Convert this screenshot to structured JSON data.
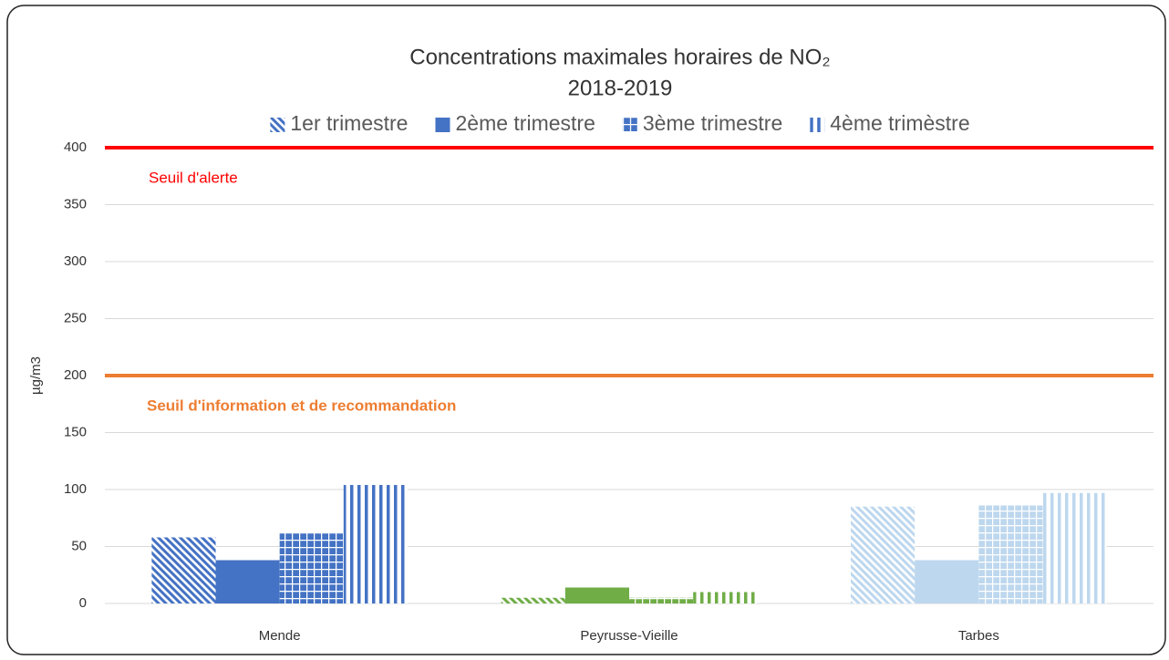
{
  "chart_data": {
    "type": "bar",
    "title": "Concentrations maximales horaires de NO₂",
    "subtitle": "2018-2019",
    "y_label": "µg/m3",
    "categories": [
      "Mende",
      "Peyrusse-Vieille",
      "Tarbes"
    ],
    "category_colors": [
      "#4472c4",
      "#70ad47",
      "#bdd7ee"
    ],
    "legend_color": "#4472c4",
    "series": [
      {
        "name": "1er trimestre",
        "pattern": "diagonal",
        "values": [
          58,
          5,
          85
        ]
      },
      {
        "name": "2ème trimestre",
        "pattern": "solid",
        "values": [
          38,
          14,
          38
        ]
      },
      {
        "name": "3ème trimestre",
        "pattern": "grid",
        "values": [
          62,
          5,
          86
        ]
      },
      {
        "name": "4ème trimèstre",
        "pattern": "vertical",
        "values": [
          104,
          10,
          97
        ]
      }
    ],
    "reference_lines": [
      {
        "value": 400,
        "label": "Seuil d'alerte",
        "color": "#ff0000"
      },
      {
        "value": 200,
        "label": "Seuil d'information et de recommandation",
        "color": "#ed7d31"
      }
    ],
    "ylim": [
      0,
      400
    ],
    "yticks": [
      0,
      50,
      100,
      150,
      200,
      250,
      300,
      350,
      400
    ],
    "grid": true
  }
}
